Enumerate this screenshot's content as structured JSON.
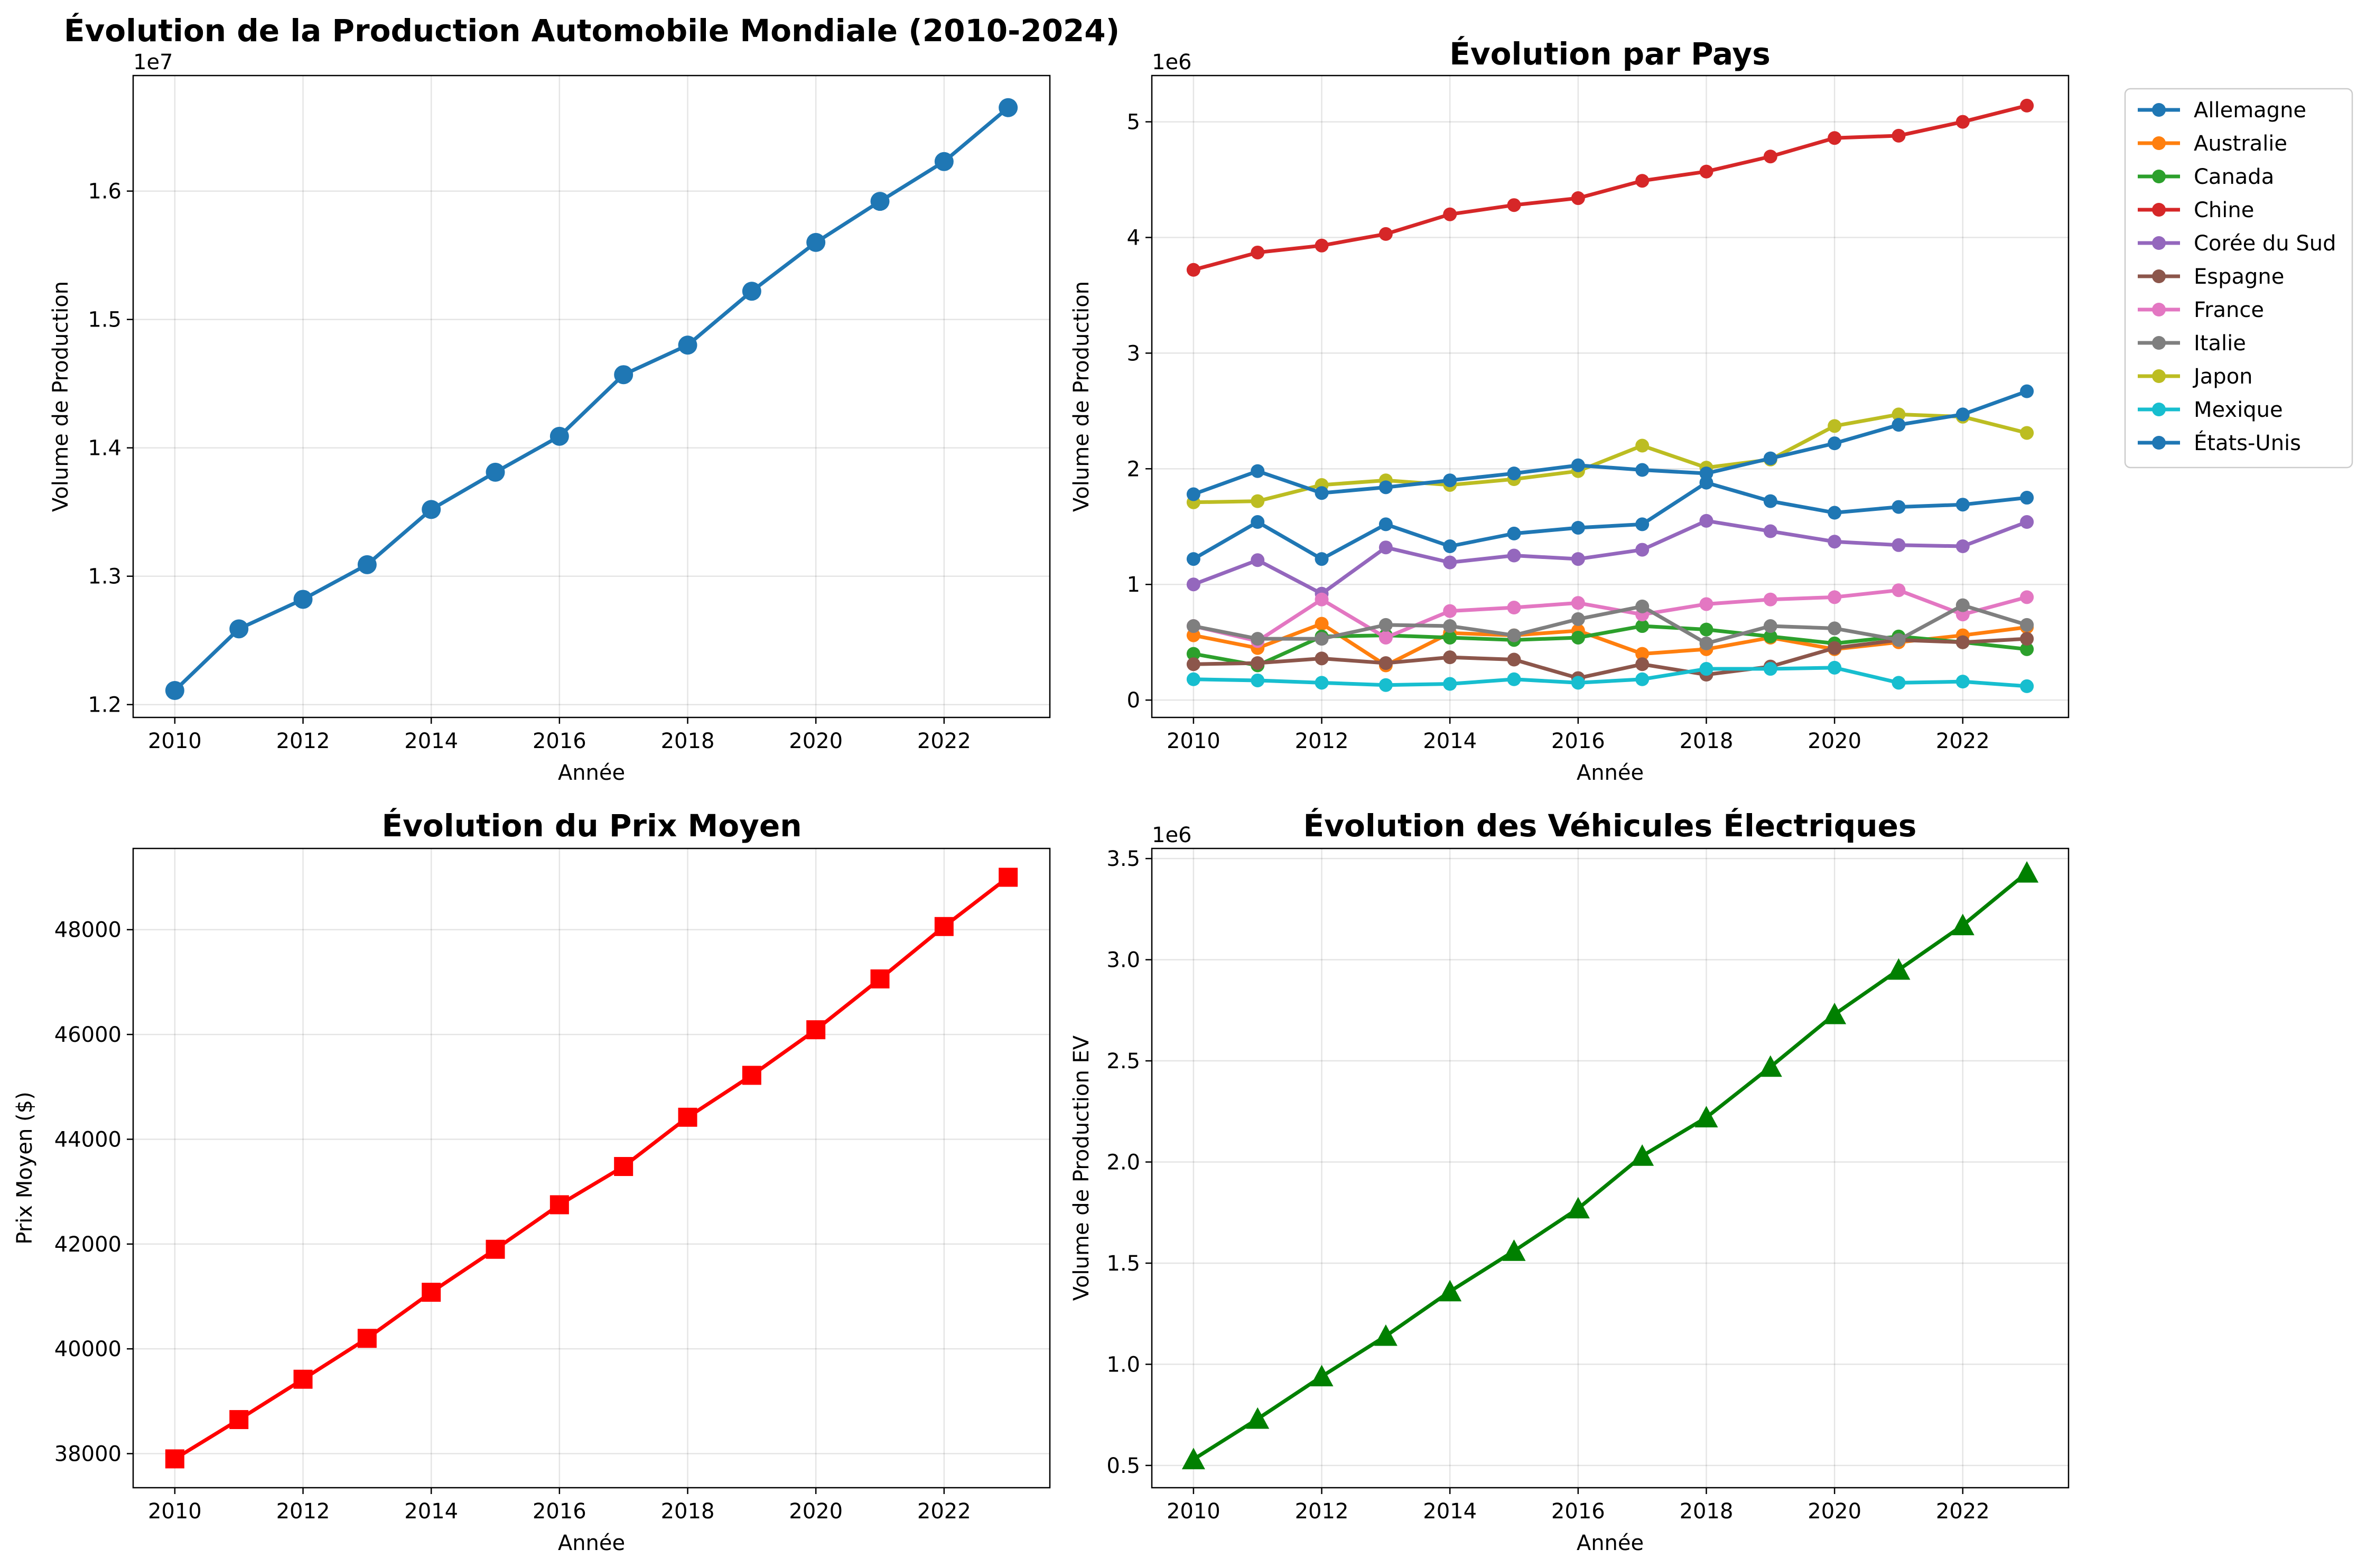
{
  "chart_data": [
    {
      "type": "line",
      "title": "Évolution de la Production Automobile Mondiale (2010-2024)",
      "xlabel": "Année",
      "ylabel": "Volume de Production",
      "y_offset_label": "1e7",
      "x": [
        2010,
        2011,
        2012,
        2013,
        2014,
        2015,
        2016,
        2017,
        2018,
        2019,
        2020,
        2021,
        2022,
        2023
      ],
      "xticks": [
        "2010",
        "2012",
        "2014",
        "2016",
        "2018",
        "2020",
        "2022"
      ],
      "yticks": [
        "1.2",
        "1.3",
        "1.4",
        "1.5",
        "1.6"
      ],
      "xlim": [
        2009.35,
        2023.65
      ],
      "ylim": [
        11.9,
        16.9
      ],
      "y_scale": 1000000,
      "grid": true,
      "series": [
        {
          "color": "#1f77b4",
          "marker": "circle",
          "values": [
            12110000,
            12590000,
            12820000,
            13090000,
            13520000,
            13810000,
            14090000,
            14570000,
            14800000,
            15220000,
            15600000,
            15920000,
            16230000,
            16650000
          ]
        }
      ]
    },
    {
      "type": "line",
      "title": "Évolution par Pays",
      "xlabel": "Année",
      "ylabel": "Volume de Production",
      "y_offset_label": "1e6",
      "x": [
        2010,
        2011,
        2012,
        2013,
        2014,
        2015,
        2016,
        2017,
        2018,
        2019,
        2020,
        2021,
        2022,
        2023
      ],
      "xticks": [
        "2010",
        "2012",
        "2014",
        "2016",
        "2018",
        "2020",
        "2022"
      ],
      "yticks": [
        "0",
        "1",
        "2",
        "3",
        "4",
        "5"
      ],
      "xlim": [
        2009.35,
        2023.65
      ],
      "ylim": [
        -0.15,
        5.4
      ],
      "y_scale": 1000000,
      "grid": true,
      "legend_position": "outside-right",
      "series": [
        {
          "name": "Allemagne",
          "color": "#1f77b4",
          "marker": "circle",
          "values": [
            1220000,
            1540000,
            1220000,
            1520000,
            1330000,
            1440000,
            1490000,
            1520000,
            1880000,
            1720000,
            1620000,
            1670000,
            1690000,
            1750000
          ]
        },
        {
          "name": "Australie",
          "color": "#ff7f0e",
          "marker": "circle",
          "values": [
            560000,
            450000,
            660000,
            300000,
            580000,
            560000,
            600000,
            400000,
            440000,
            540000,
            440000,
            500000,
            560000,
            630000
          ]
        },
        {
          "name": "Canada",
          "color": "#2ca02c",
          "marker": "circle",
          "values": [
            400000,
            300000,
            550000,
            560000,
            540000,
            520000,
            540000,
            640000,
            610000,
            550000,
            490000,
            550000,
            500000,
            440000
          ]
        },
        {
          "name": "Chine",
          "color": "#d62728",
          "marker": "circle",
          "values": [
            3720000,
            3870000,
            3930000,
            4030000,
            4200000,
            4280000,
            4340000,
            4490000,
            4570000,
            4700000,
            4860000,
            4880000,
            5000000,
            5140000
          ]
        },
        {
          "name": "Corée du Sud",
          "color": "#9467bd",
          "marker": "circle",
          "values": [
            1000000,
            1210000,
            920000,
            1320000,
            1190000,
            1250000,
            1220000,
            1300000,
            1550000,
            1460000,
            1370000,
            1340000,
            1330000,
            1540000
          ]
        },
        {
          "name": "Espagne",
          "color": "#8c564b",
          "marker": "circle",
          "values": [
            310000,
            320000,
            360000,
            320000,
            370000,
            350000,
            190000,
            310000,
            220000,
            290000,
            450000,
            520000,
            500000,
            530000
          ]
        },
        {
          "name": "France",
          "color": "#e377c2",
          "marker": "circle",
          "values": [
            640000,
            510000,
            870000,
            540000,
            770000,
            800000,
            840000,
            740000,
            830000,
            870000,
            890000,
            950000,
            740000,
            890000
          ]
        },
        {
          "name": "Italie",
          "color": "#7f7f7f",
          "marker": "circle",
          "values": [
            640000,
            530000,
            530000,
            650000,
            640000,
            560000,
            700000,
            810000,
            490000,
            640000,
            620000,
            520000,
            820000,
            650000
          ]
        },
        {
          "name": "Japon",
          "color": "#bcbd22",
          "marker": "circle",
          "values": [
            1710000,
            1720000,
            1860000,
            1900000,
            1860000,
            1910000,
            1980000,
            2200000,
            2010000,
            2080000,
            2370000,
            2470000,
            2450000,
            2310000
          ]
        },
        {
          "name": "Mexique",
          "color": "#17becf",
          "marker": "circle",
          "values": [
            180000,
            170000,
            150000,
            130000,
            140000,
            180000,
            150000,
            180000,
            270000,
            270000,
            280000,
            150000,
            160000,
            120000
          ]
        },
        {
          "name": "États-Unis",
          "color": "#1f77b4",
          "marker": "circle",
          "values": [
            1780000,
            1980000,
            1790000,
            1840000,
            1900000,
            1960000,
            2030000,
            1990000,
            1960000,
            2090000,
            2220000,
            2380000,
            2470000,
            2670000
          ]
        }
      ]
    },
    {
      "type": "line",
      "title": "Évolution du Prix Moyen",
      "xlabel": "Année",
      "ylabel": "Prix Moyen ($)",
      "x": [
        2010,
        2011,
        2012,
        2013,
        2014,
        2015,
        2016,
        2017,
        2018,
        2019,
        2020,
        2021,
        2022,
        2023
      ],
      "xticks": [
        "2010",
        "2012",
        "2014",
        "2016",
        "2018",
        "2020",
        "2022"
      ],
      "yticks": [
        "38000",
        "40000",
        "42000",
        "44000",
        "46000",
        "48000"
      ],
      "xlim": [
        2009.35,
        2023.65
      ],
      "ylim": [
        37350,
        49550
      ],
      "y_scale": 1,
      "grid": true,
      "series": [
        {
          "color": "#ff0000",
          "marker": "square",
          "values": [
            37900,
            38650,
            39420,
            40200,
            41080,
            41900,
            42750,
            43480,
            44420,
            45220,
            46090,
            47060,
            48060,
            49000
          ]
        }
      ]
    },
    {
      "type": "line",
      "title": "Évolution des Véhicules Électriques",
      "xlabel": "Année",
      "ylabel": "Volume de Production EV",
      "y_offset_label": "1e6",
      "x": [
        2010,
        2011,
        2012,
        2013,
        2014,
        2015,
        2016,
        2017,
        2018,
        2019,
        2020,
        2021,
        2022,
        2023
      ],
      "xticks": [
        "2010",
        "2012",
        "2014",
        "2016",
        "2018",
        "2020",
        "2022"
      ],
      "yticks": [
        "0.5",
        "1.0",
        "1.5",
        "2.0",
        "2.5",
        "3.0",
        "3.5"
      ],
      "xlim": [
        2009.35,
        2023.65
      ],
      "ylim": [
        0.39,
        3.55
      ],
      "y_scale": 1000000,
      "grid": true,
      "series": [
        {
          "color": "#008000",
          "marker": "triangle",
          "values": [
            530000,
            730000,
            940000,
            1140000,
            1360000,
            1560000,
            1770000,
            2030000,
            2220000,
            2470000,
            2730000,
            2950000,
            3170000,
            3430000
          ]
        }
      ]
    }
  ]
}
